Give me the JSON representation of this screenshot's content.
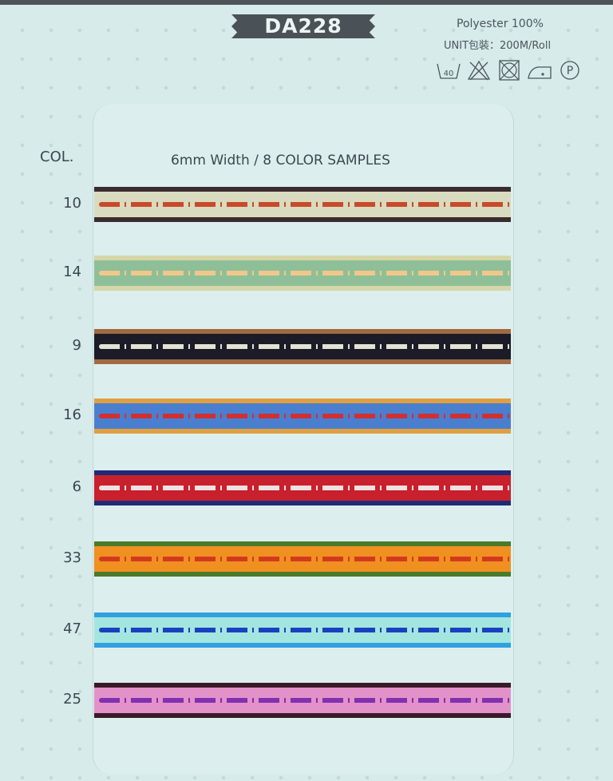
{
  "header": {
    "model": "DA228",
    "material": "Polyester 100%",
    "unit": "UNIT包裝：200M/Roll",
    "care_icons": [
      "wash-40-icon",
      "no-bleach-icon",
      "no-tumble-dry-icon",
      "iron-low-icon",
      "dry-clean-p-icon"
    ],
    "wash_temp": "40",
    "dry_clean_letter": "P"
  },
  "col_label": "COL.",
  "subtitle": "6mm Width / 8 COLOR SAMPLES",
  "samples": [
    {
      "col": "10",
      "edge": "#3a2c2e",
      "body": "#d9dbc0",
      "stitch": "#c84a2a"
    },
    {
      "col": "14",
      "edge": "#d6d6a8",
      "body": "#8fbf98",
      "stitch": "#f0c88a"
    },
    {
      "col": "9",
      "edge": "#a06a42",
      "body": "#1b1c28",
      "stitch": "#e4e2d2"
    },
    {
      "col": "16",
      "edge": "#e0a040",
      "body": "#4a7fd0",
      "stitch": "#d03030"
    },
    {
      "col": "6",
      "edge": "#202a78",
      "body": "#c8202c",
      "stitch": "#f0e2e2"
    },
    {
      "col": "33",
      "edge": "#4a7a2a",
      "body": "#f09020",
      "stitch": "#d23a20"
    },
    {
      "col": "47",
      "edge": "#30a0e0",
      "body": "#a2e6df",
      "stitch": "#1a40c0"
    },
    {
      "col": "25",
      "edge": "#3a1a2a",
      "body": "#e292c8",
      "stitch": "#8030b0"
    }
  ]
}
